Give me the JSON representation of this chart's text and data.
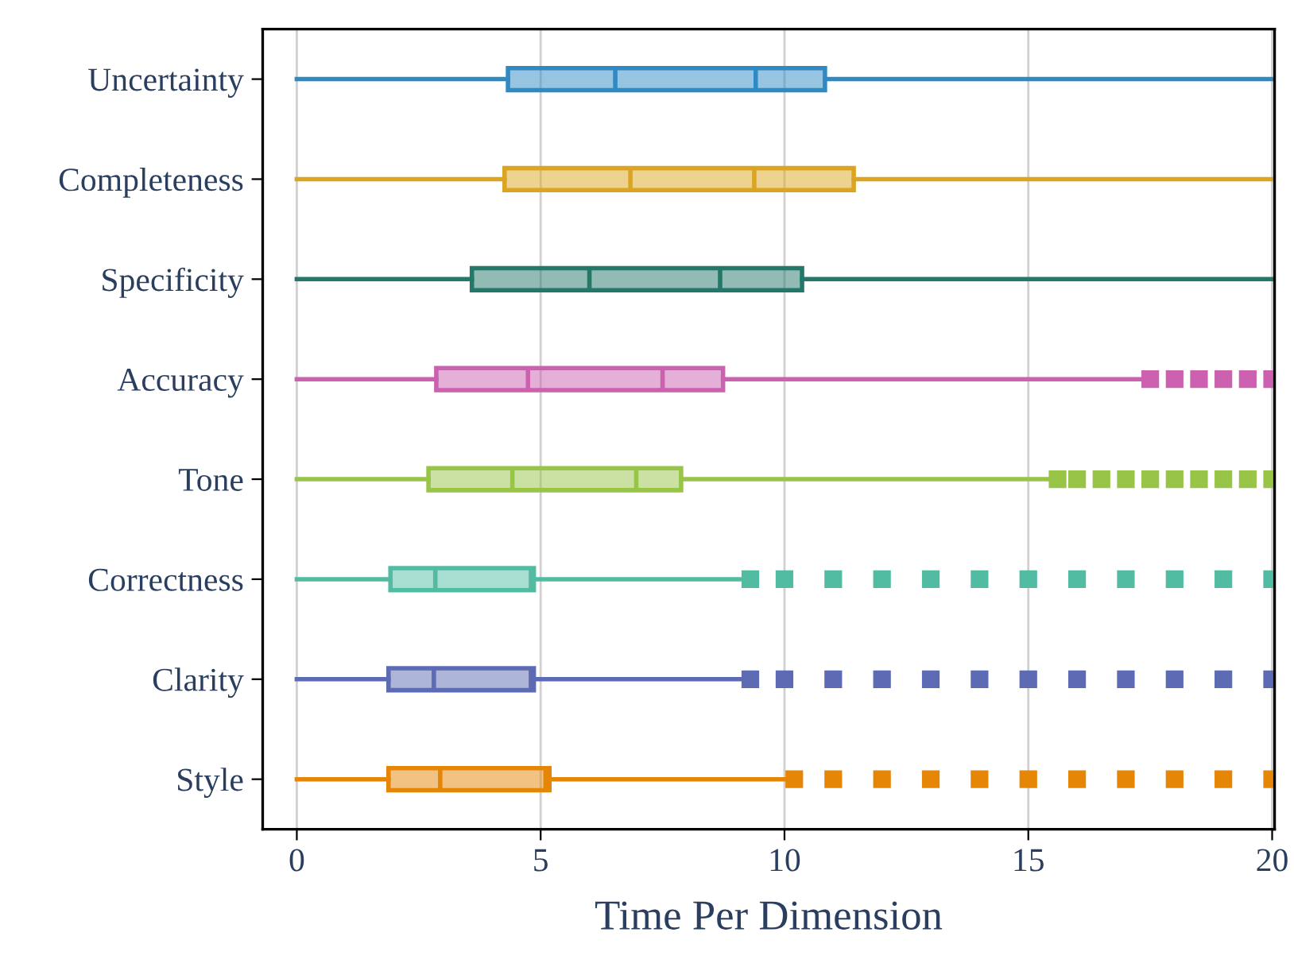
{
  "chart_data": {
    "type": "box",
    "orientation": "horizontal",
    "xlabel": "Time Per Dimension",
    "categories": [
      "Uncertainty",
      "Completeness",
      "Specificity",
      "Accuracy",
      "Tone",
      "Correctness",
      "Clarity",
      "Style"
    ],
    "colors": [
      "#2f8ac4",
      "#dba521",
      "#23786a",
      "#cc61b0",
      "#98c447",
      "#52bca3",
      "#5c6bb3",
      "#e58606"
    ],
    "boxes": [
      {
        "low": 0,
        "q1": 4.33,
        "median": 6.53,
        "q3": 10.83,
        "high": 20,
        "mean": 9.41
      },
      {
        "low": 0,
        "q1": 4.26,
        "median": 6.84,
        "q3": 11.42,
        "high": 20,
        "mean": 9.38
      },
      {
        "low": 0,
        "q1": 3.59,
        "median": 6.0,
        "q3": 10.36,
        "high": 20,
        "mean": 8.68
      },
      {
        "low": 0,
        "q1": 2.86,
        "median": 4.74,
        "q3": 8.74,
        "high": 17.4,
        "mean": 7.5,
        "outliers": [
          17.5,
          18,
          18.5,
          19,
          19.5,
          20
        ]
      },
      {
        "low": 0,
        "q1": 2.7,
        "median": 4.42,
        "q3": 7.88,
        "high": 15.5,
        "mean": 6.96,
        "outliers": [
          15.6,
          16,
          16.5,
          17,
          17.5,
          18,
          18.5,
          19,
          19.5,
          20
        ]
      },
      {
        "low": 0,
        "q1": 1.92,
        "median": 2.84,
        "q3": 4.86,
        "high": 9.2,
        "mean": 4.8,
        "outliers": [
          9.3,
          10,
          11,
          12,
          13,
          14,
          15,
          16,
          17,
          18,
          19,
          20
        ]
      },
      {
        "low": 0,
        "q1": 1.88,
        "median": 2.81,
        "q3": 4.86,
        "high": 9.2,
        "mean": 4.8,
        "outliers": [
          9.3,
          10,
          11,
          12,
          13,
          14,
          15,
          16,
          17,
          18,
          19,
          20
        ]
      },
      {
        "low": 0,
        "q1": 1.88,
        "median": 2.94,
        "q3": 5.18,
        "high": 10.1,
        "mean": 5.1,
        "outliers": [
          10.2,
          11,
          12,
          13,
          14,
          15,
          16,
          17,
          18,
          19,
          20
        ]
      }
    ],
    "xlim": [
      -0.7,
      20.05
    ],
    "xticks": [
      0,
      5,
      10,
      15,
      20
    ],
    "grid": "x",
    "marker": "square"
  }
}
